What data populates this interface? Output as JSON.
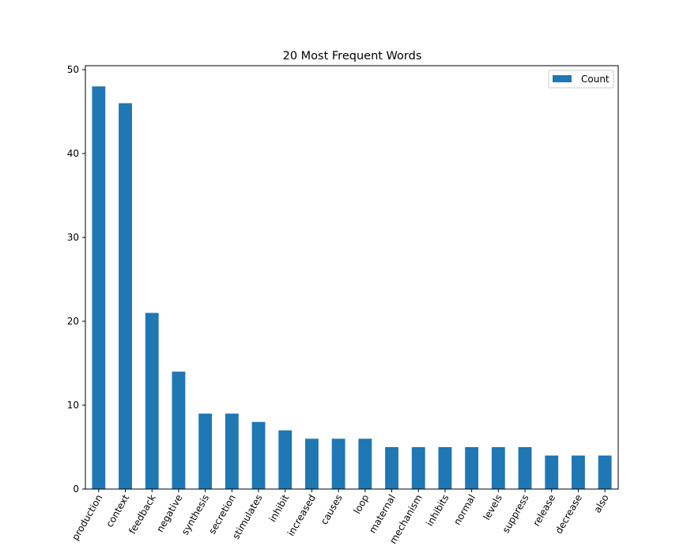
{
  "chart_data": {
    "type": "bar",
    "title": "20 Most Frequent Words",
    "xlabel": "",
    "ylabel": "",
    "categories": [
      "production",
      "context",
      "feedback",
      "negative",
      "synthesis",
      "secretion",
      "stimulates",
      "inhibit",
      "increased",
      "causes",
      "loop",
      "maternal",
      "mechanism",
      "inhibits",
      "normal",
      "levels",
      "suppress",
      "release",
      "decrease",
      "also"
    ],
    "series": [
      {
        "name": "Count",
        "color": "#1f77b4",
        "values": [
          48,
          46,
          21,
          14,
          9,
          9,
          8,
          7,
          6,
          6,
          6,
          5,
          5,
          5,
          5,
          5,
          5,
          4,
          4,
          4
        ]
      }
    ],
    "ylim": [
      0,
      50
    ],
    "yticks": [
      0,
      10,
      20,
      30,
      40,
      50
    ],
    "grid": false,
    "legend": "top-right"
  }
}
